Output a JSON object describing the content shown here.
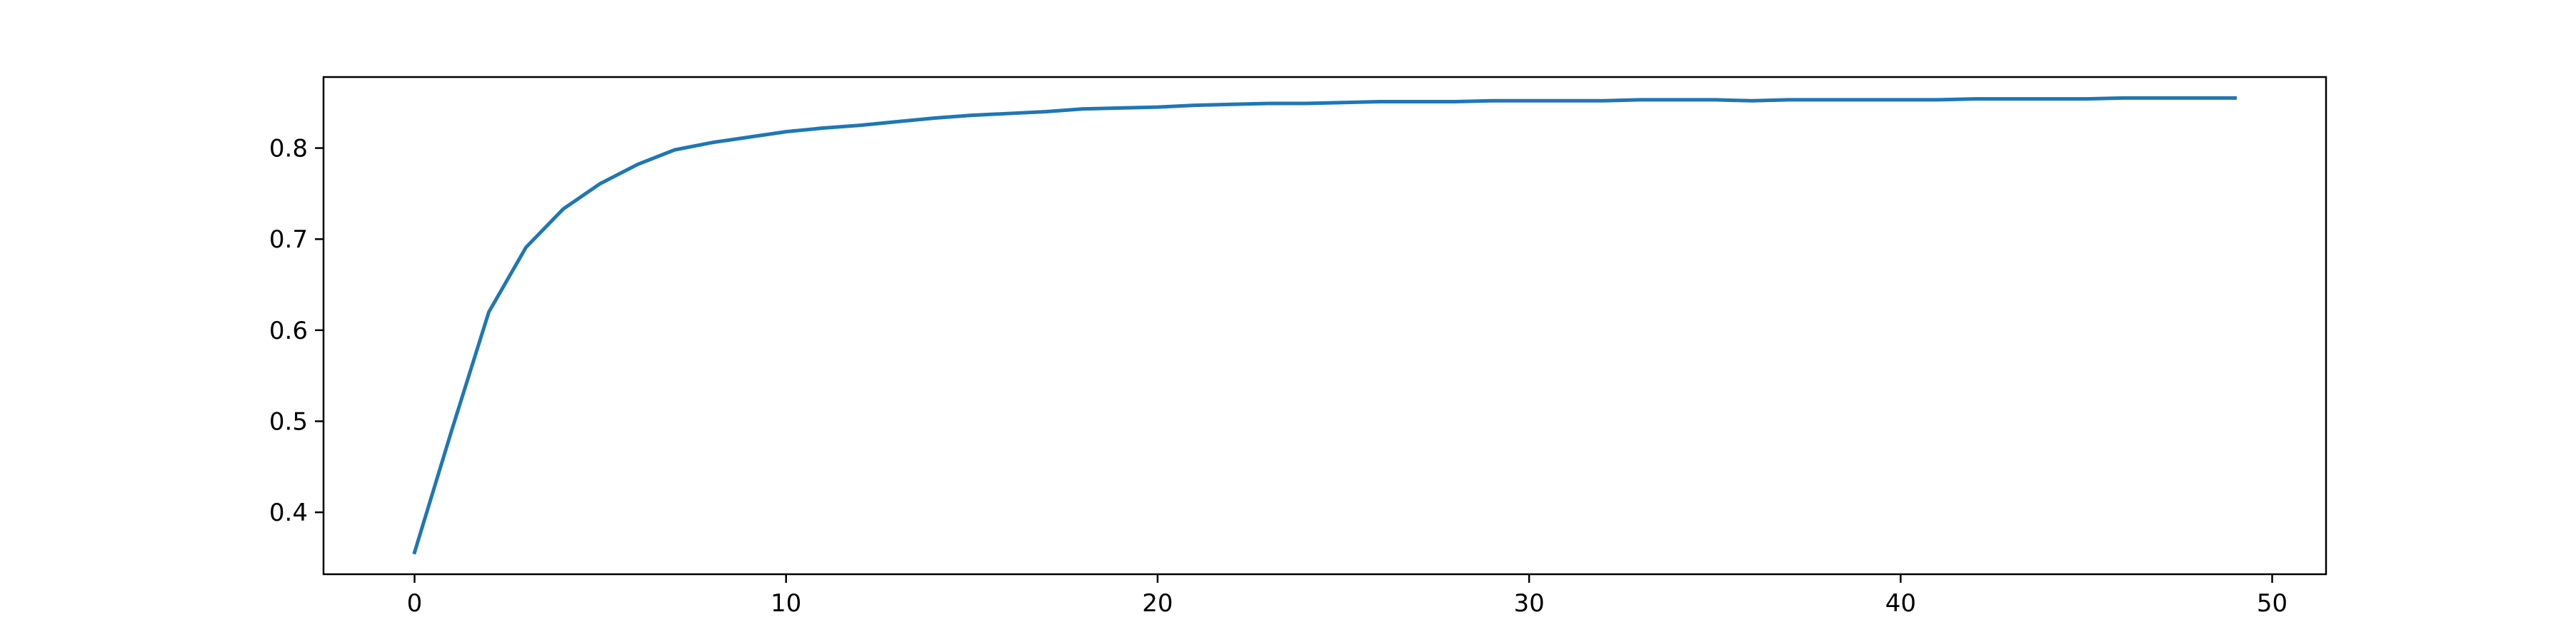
{
  "chart_data": {
    "type": "line",
    "title": "",
    "xlabel": "",
    "ylabel": "",
    "xlim": [
      -2.45,
      51.45
    ],
    "ylim": [
      0.332,
      0.878
    ],
    "xticks": [
      0,
      10,
      20,
      30,
      40,
      50
    ],
    "yticks": [
      0.4,
      0.5,
      0.6,
      0.7,
      0.8
    ],
    "xtick_labels": [
      "0",
      "10",
      "20",
      "30",
      "40",
      "50"
    ],
    "ytick_labels": [
      "0.4",
      "0.5",
      "0.6",
      "0.7",
      "0.8"
    ],
    "grid": false,
    "legend": "none",
    "series": [
      {
        "color": "#1f77b4",
        "x": [
          0,
          1,
          2,
          3,
          4,
          5,
          6,
          7,
          8,
          9,
          10,
          11,
          12,
          13,
          14,
          15,
          16,
          17,
          18,
          19,
          20,
          21,
          22,
          23,
          24,
          25,
          26,
          27,
          28,
          29,
          30,
          31,
          32,
          33,
          34,
          35,
          36,
          37,
          38,
          39,
          40,
          41,
          42,
          43,
          44,
          45,
          46,
          47,
          48,
          49
        ],
        "values": [
          0.356,
          0.49,
          0.62,
          0.691,
          0.733,
          0.761,
          0.782,
          0.798,
          0.806,
          0.812,
          0.818,
          0.822,
          0.825,
          0.829,
          0.833,
          0.836,
          0.838,
          0.84,
          0.843,
          0.844,
          0.845,
          0.847,
          0.848,
          0.849,
          0.849,
          0.85,
          0.851,
          0.851,
          0.851,
          0.852,
          0.852,
          0.852,
          0.852,
          0.853,
          0.853,
          0.853,
          0.852,
          0.853,
          0.853,
          0.853,
          0.853,
          0.853,
          0.854,
          0.854,
          0.854,
          0.854,
          0.855,
          0.855,
          0.855,
          0.855
        ]
      }
    ]
  }
}
